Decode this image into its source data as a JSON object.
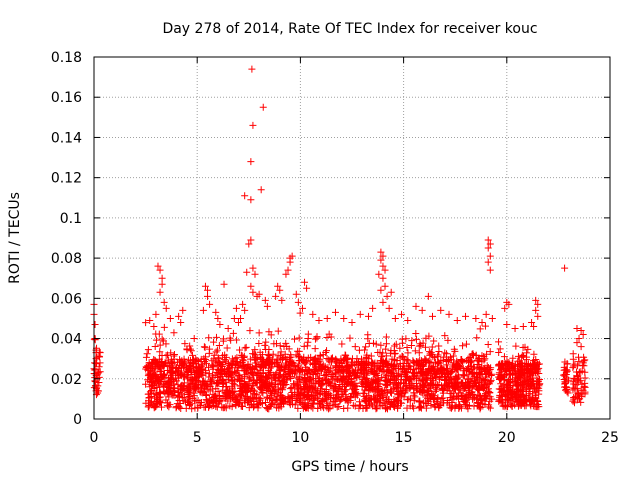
{
  "colors": {
    "series": "#ff0000",
    "grid": "#a0a0a0",
    "axis": "#000000",
    "background": "#ffffff"
  },
  "chart_data": {
    "type": "scatter",
    "title": "Day 278 of 2014, Rate Of TEC Index for receiver kouc",
    "xlabel": "GPS time / hours",
    "ylabel": "ROTI / TECUs",
    "xlim": [
      0,
      25
    ],
    "ylim": [
      0,
      0.18
    ],
    "xticks": [
      0,
      5,
      10,
      15,
      20,
      25
    ],
    "yticks": [
      0,
      0.02,
      0.04,
      0.06,
      0.08,
      0.1,
      0.12,
      0.14,
      0.16,
      0.18
    ],
    "ytick_labels": [
      "0",
      "0.02",
      "0.04",
      "0.06",
      "0.08",
      "0.1",
      "0.12",
      "0.14",
      "0.16",
      "0.18"
    ],
    "grid": true,
    "marker": "+",
    "series": [
      {
        "name": "ROTI",
        "color": "#ff0000",
        "bands": [
          {
            "x0": 0.0,
            "x1": 0.3,
            "base_min": 0.012,
            "base_max": 0.035,
            "spread": 0.01,
            "count": 40
          },
          {
            "x0": 2.5,
            "x1": 19.3,
            "base_min": 0.005,
            "base_max": 0.03,
            "spread": 0.015,
            "count": 2600
          },
          {
            "x0": 19.6,
            "x1": 21.6,
            "base_min": 0.006,
            "base_max": 0.028,
            "spread": 0.01,
            "count": 380
          },
          {
            "x0": 22.7,
            "x1": 23.0,
            "base_min": 0.012,
            "base_max": 0.025,
            "spread": 0.004,
            "count": 30
          },
          {
            "x0": 23.2,
            "x1": 23.8,
            "base_min": 0.008,
            "base_max": 0.03,
            "spread": 0.008,
            "count": 60
          }
        ],
        "points": [
          [
            0.0,
            0.057
          ],
          [
            0.0,
            0.052
          ],
          [
            0.05,
            0.047
          ],
          [
            0.05,
            0.04
          ],
          [
            0.1,
            0.033
          ],
          [
            0.1,
            0.03
          ],
          [
            0.0,
            0.025
          ],
          [
            0.15,
            0.02
          ],
          [
            0.1,
            0.014
          ],
          [
            3.1,
            0.076
          ],
          [
            3.2,
            0.074
          ],
          [
            3.3,
            0.07
          ],
          [
            3.3,
            0.067
          ],
          [
            3.2,
            0.063
          ],
          [
            3.4,
            0.058
          ],
          [
            3.5,
            0.055
          ],
          [
            3.0,
            0.052
          ],
          [
            3.7,
            0.05
          ],
          [
            4.1,
            0.051
          ],
          [
            4.3,
            0.054
          ],
          [
            4.2,
            0.048
          ],
          [
            2.7,
            0.049
          ],
          [
            2.9,
            0.046
          ],
          [
            5.4,
            0.066
          ],
          [
            5.5,
            0.064
          ],
          [
            5.5,
            0.061
          ],
          [
            5.6,
            0.057
          ],
          [
            5.3,
            0.054
          ],
          [
            5.9,
            0.053
          ],
          [
            6.0,
            0.05
          ],
          [
            6.1,
            0.047
          ],
          [
            6.3,
            0.067
          ],
          [
            6.8,
            0.05
          ],
          [
            6.5,
            0.045
          ],
          [
            6.9,
            0.055
          ],
          [
            7.0,
            0.048
          ],
          [
            7.3,
            0.111
          ],
          [
            7.6,
            0.109
          ],
          [
            7.65,
            0.174
          ],
          [
            7.7,
            0.146
          ],
          [
            7.6,
            0.128
          ],
          [
            8.2,
            0.155
          ],
          [
            8.1,
            0.114
          ],
          [
            7.6,
            0.089
          ],
          [
            7.5,
            0.087
          ],
          [
            7.7,
            0.075
          ],
          [
            7.4,
            0.073
          ],
          [
            7.8,
            0.072
          ],
          [
            7.6,
            0.066
          ],
          [
            7.7,
            0.063
          ],
          [
            8.0,
            0.062
          ],
          [
            7.9,
            0.061
          ],
          [
            8.3,
            0.059
          ],
          [
            8.4,
            0.056
          ],
          [
            7.2,
            0.057
          ],
          [
            7.3,
            0.054
          ],
          [
            7.1,
            0.05
          ],
          [
            8.8,
            0.061
          ],
          [
            8.9,
            0.066
          ],
          [
            9.0,
            0.064
          ],
          [
            9.1,
            0.059
          ],
          [
            9.4,
            0.074
          ],
          [
            9.3,
            0.072
          ],
          [
            9.5,
            0.08
          ],
          [
            9.6,
            0.081
          ],
          [
            9.5,
            0.078
          ],
          [
            9.8,
            0.062
          ],
          [
            9.9,
            0.058
          ],
          [
            10.1,
            0.055
          ],
          [
            10.2,
            0.068
          ],
          [
            10.3,
            0.065
          ],
          [
            10.6,
            0.052
          ],
          [
            10.9,
            0.049
          ],
          [
            11.3,
            0.05
          ],
          [
            11.7,
            0.053
          ],
          [
            12.1,
            0.05
          ],
          [
            12.5,
            0.048
          ],
          [
            12.9,
            0.052
          ],
          [
            13.3,
            0.051
          ],
          [
            13.5,
            0.055
          ],
          [
            13.9,
            0.083
          ],
          [
            14.0,
            0.081
          ],
          [
            13.9,
            0.079
          ],
          [
            14.0,
            0.076
          ],
          [
            14.1,
            0.074
          ],
          [
            13.8,
            0.072
          ],
          [
            14.0,
            0.07
          ],
          [
            14.1,
            0.066
          ],
          [
            13.9,
            0.064
          ],
          [
            14.2,
            0.061
          ],
          [
            14.4,
            0.063
          ],
          [
            14.0,
            0.058
          ],
          [
            14.3,
            0.055
          ],
          [
            14.6,
            0.05
          ],
          [
            14.9,
            0.052
          ],
          [
            15.2,
            0.049
          ],
          [
            15.6,
            0.056
          ],
          [
            15.9,
            0.054
          ],
          [
            16.2,
            0.061
          ],
          [
            16.4,
            0.051
          ],
          [
            16.8,
            0.054
          ],
          [
            17.2,
            0.052
          ],
          [
            17.6,
            0.049
          ],
          [
            18.0,
            0.051
          ],
          [
            18.5,
            0.05
          ],
          [
            18.8,
            0.048
          ],
          [
            19.1,
            0.089
          ],
          [
            19.2,
            0.087
          ],
          [
            19.1,
            0.085
          ],
          [
            19.2,
            0.081
          ],
          [
            19.1,
            0.078
          ],
          [
            19.2,
            0.074
          ],
          [
            19.0,
            0.052
          ],
          [
            19.3,
            0.05
          ],
          [
            20.0,
            0.058
          ],
          [
            20.1,
            0.057
          ],
          [
            19.9,
            0.055
          ],
          [
            20.0,
            0.047
          ],
          [
            20.4,
            0.045
          ],
          [
            20.8,
            0.046
          ],
          [
            21.2,
            0.048
          ],
          [
            21.4,
            0.059
          ],
          [
            21.5,
            0.057
          ],
          [
            21.4,
            0.054
          ],
          [
            21.5,
            0.051
          ],
          [
            21.3,
            0.046
          ],
          [
            22.8,
            0.075
          ],
          [
            23.4,
            0.045
          ],
          [
            23.6,
            0.044
          ],
          [
            23.7,
            0.042
          ],
          [
            23.5,
            0.04
          ],
          [
            23.4,
            0.038
          ],
          [
            23.6,
            0.036
          ]
        ]
      }
    ]
  }
}
